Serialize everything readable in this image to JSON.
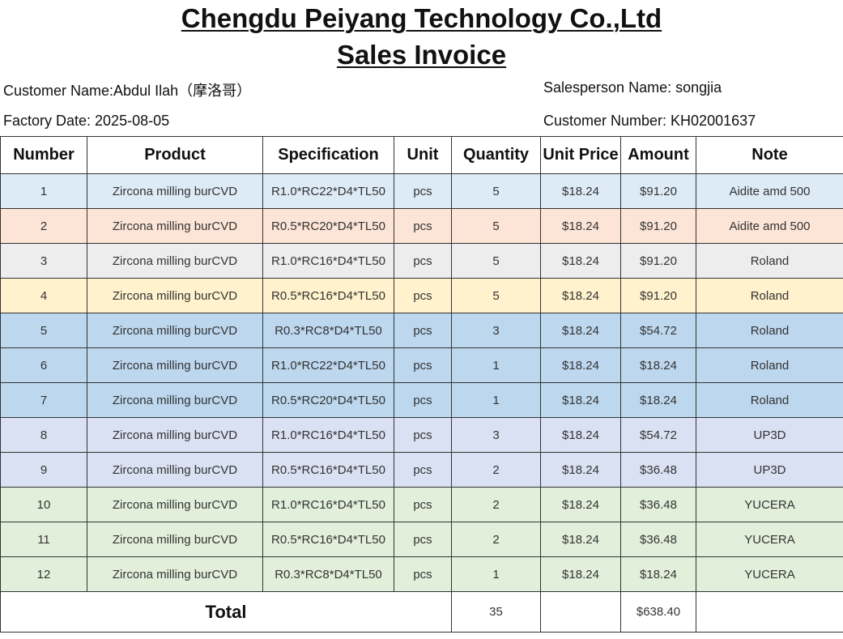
{
  "header": {
    "company": "Chengdu Peiyang Technology Co.,Ltd",
    "subtitle": "Sales Invoice",
    "customer_name": "Customer Name:Abdul Ilah（摩洛哥）",
    "factory_date": "Factory Date: 2025-08-05",
    "salesperson": "Salesperson Name: songjia",
    "customer_number": "Customer Number: KH02001637"
  },
  "columns": [
    "Number",
    "Product",
    "Specification",
    "Unit",
    "Quantity",
    "Unit Price",
    "Amount",
    "Note"
  ],
  "rows": [
    {
      "number": "1",
      "product": "Zircona milling burCVD",
      "spec": "R1.0*RC22*D4*TL50",
      "unit": "pcs",
      "qty": "5",
      "price": "$18.24",
      "amount": "$91.20",
      "note": "Aidite amd 500",
      "color": "#ddebf7"
    },
    {
      "number": "2",
      "product": "Zircona milling burCVD",
      "spec": "R0.5*RC20*D4*TL50",
      "unit": "pcs",
      "qty": "5",
      "price": "$18.24",
      "amount": "$91.20",
      "note": "Aidite amd 500",
      "color": "#fce4d6"
    },
    {
      "number": "3",
      "product": "Zircona milling burCVD",
      "spec": "R1.0*RC16*D4*TL50",
      "unit": "pcs",
      "qty": "5",
      "price": "$18.24",
      "amount": "$91.20",
      "note": "Roland",
      "color": "#ededed"
    },
    {
      "number": "4",
      "product": "Zircona milling burCVD",
      "spec": "R0.5*RC16*D4*TL50",
      "unit": "pcs",
      "qty": "5",
      "price": "$18.24",
      "amount": "$91.20",
      "note": "Roland",
      "color": "#fff2cc"
    },
    {
      "number": "5",
      "product": "Zircona milling burCVD",
      "spec": "R0.3*RC8*D4*TL50",
      "unit": "pcs",
      "qty": "3",
      "price": "$18.24",
      "amount": "$54.72",
      "note": "Roland",
      "color": "#bdd7ee"
    },
    {
      "number": "6",
      "product": "Zircona milling burCVD",
      "spec": "R1.0*RC22*D4*TL50",
      "unit": "pcs",
      "qty": "1",
      "price": "$18.24",
      "amount": "$18.24",
      "note": "Roland",
      "color": "#bdd7ee"
    },
    {
      "number": "7",
      "product": "Zircona milling burCVD",
      "spec": "R0.5*RC20*D4*TL50",
      "unit": "pcs",
      "qty": "1",
      "price": "$18.24",
      "amount": "$18.24",
      "note": "Roland",
      "color": "#bdd7ee"
    },
    {
      "number": "8",
      "product": "Zircona milling burCVD",
      "spec": "R1.0*RC16*D4*TL50",
      "unit": "pcs",
      "qty": "3",
      "price": "$18.24",
      "amount": "$54.72",
      "note": "UP3D",
      "color": "#d9e1f2"
    },
    {
      "number": "9",
      "product": "Zircona milling burCVD",
      "spec": "R0.5*RC16*D4*TL50",
      "unit": "pcs",
      "qty": "2",
      "price": "$18.24",
      "amount": "$36.48",
      "note": "UP3D",
      "color": "#d9e1f2"
    },
    {
      "number": "10",
      "product": "Zircona milling burCVD",
      "spec": "R1.0*RC16*D4*TL50",
      "unit": "pcs",
      "qty": "2",
      "price": "$18.24",
      "amount": "$36.48",
      "note": "YUCERA",
      "color": "#e2efda"
    },
    {
      "number": "11",
      "product": "Zircona milling burCVD",
      "spec": "R0.5*RC16*D4*TL50",
      "unit": "pcs",
      "qty": "2",
      "price": "$18.24",
      "amount": "$36.48",
      "note": "YUCERA",
      "color": "#e2efda"
    },
    {
      "number": "12",
      "product": "Zircona milling burCVD",
      "spec": "R0.3*RC8*D4*TL50",
      "unit": "pcs",
      "qty": "1",
      "price": "$18.24",
      "amount": "$18.24",
      "note": "YUCERA",
      "color": "#e2efda"
    }
  ],
  "total": {
    "label": "Total",
    "qty": "35",
    "amount": "$638.40"
  }
}
